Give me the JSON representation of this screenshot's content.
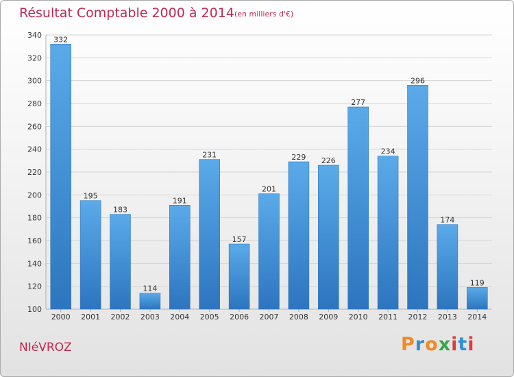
{
  "chart_data": {
    "type": "bar",
    "title": "Résultat Comptable 2000 à 2014",
    "subtitle": "(en milliers d'€)",
    "categories": [
      "2000",
      "2001",
      "2002",
      "2003",
      "2004",
      "2005",
      "2006",
      "2007",
      "2008",
      "2009",
      "2010",
      "2011",
      "2012",
      "2013",
      "2014"
    ],
    "values": [
      332,
      195,
      183,
      114,
      191,
      231,
      157,
      201,
      229,
      226,
      277,
      234,
      296,
      174,
      119
    ],
    "ylim": [
      100,
      340
    ],
    "yticks": [
      100,
      120,
      140,
      160,
      180,
      200,
      220,
      240,
      260,
      280,
      300,
      320,
      340
    ],
    "xlabel": "",
    "ylabel": "",
    "grid": true,
    "bar_color": "#4a97db"
  },
  "footer": {
    "commune": "NIéVROZ",
    "logo": "Proxiti"
  },
  "colors": {
    "title": "#c0284f",
    "logo": [
      "#f08a24",
      "#2f8fd6",
      "#3aa64a",
      "#e23b3b"
    ]
  }
}
